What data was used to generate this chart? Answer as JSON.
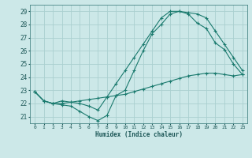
{
  "title": "",
  "xlabel": "Humidex (Indice chaleur)",
  "background_color": "#cce8e8",
  "grid_color": "#aad0d0",
  "line_color": "#1a7a6e",
  "xlim": [
    -0.5,
    23.5
  ],
  "ylim": [
    20.5,
    29.5
  ],
  "xticks": [
    0,
    1,
    2,
    3,
    4,
    5,
    6,
    7,
    8,
    9,
    10,
    11,
    12,
    13,
    14,
    15,
    16,
    17,
    18,
    19,
    20,
    21,
    22,
    23
  ],
  "yticks": [
    21,
    22,
    23,
    24,
    25,
    26,
    27,
    28,
    29
  ],
  "series": [
    {
      "x": [
        0,
        1,
        2,
        3,
        4,
        5,
        6,
        7,
        8,
        9,
        10,
        11,
        12,
        13,
        14,
        15,
        16,
        17,
        18,
        19,
        20,
        21,
        22,
        23
      ],
      "y": [
        22.9,
        22.2,
        22.0,
        21.9,
        21.8,
        21.4,
        21.0,
        20.7,
        21.1,
        22.6,
        23.0,
        24.5,
        26.0,
        27.3,
        28.0,
        28.8,
        29.0,
        28.8,
        28.1,
        27.7,
        26.6,
        26.1,
        25.0,
        24.2
      ]
    },
    {
      "x": [
        0,
        1,
        2,
        3,
        4,
        5,
        6,
        7,
        8,
        9,
        10,
        11,
        12,
        13,
        14,
        15,
        16,
        17,
        18,
        19,
        20,
        21,
        22,
        23
      ],
      "y": [
        22.9,
        22.2,
        22.0,
        22.2,
        22.1,
        22.0,
        21.8,
        21.5,
        22.5,
        23.5,
        24.5,
        25.5,
        26.5,
        27.5,
        28.5,
        29.0,
        29.0,
        28.9,
        28.8,
        28.5,
        27.5,
        26.5,
        25.5,
        24.5
      ]
    },
    {
      "x": [
        0,
        1,
        2,
        3,
        4,
        5,
        6,
        7,
        8,
        9,
        10,
        11,
        12,
        13,
        14,
        15,
        16,
        17,
        18,
        19,
        20,
        21,
        22,
        23
      ],
      "y": [
        22.9,
        22.2,
        22.0,
        22.0,
        22.1,
        22.2,
        22.3,
        22.4,
        22.5,
        22.6,
        22.7,
        22.9,
        23.1,
        23.3,
        23.5,
        23.7,
        23.9,
        24.1,
        24.2,
        24.3,
        24.3,
        24.2,
        24.1,
        24.2
      ]
    }
  ]
}
